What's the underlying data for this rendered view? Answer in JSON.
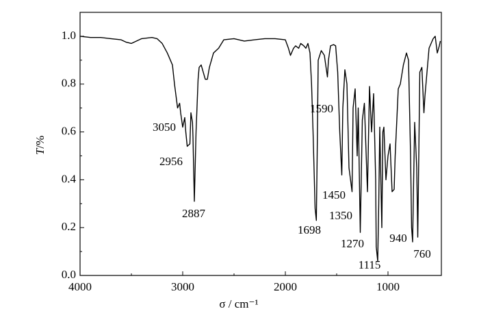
{
  "chart_data": {
    "type": "line",
    "xlabel": "σ / cm⁻¹",
    "ylabel_italic": "T",
    "ylabel_rest": "/%",
    "x": [
      4000,
      3900,
      3800,
      3700,
      3600,
      3550,
      3500,
      3450,
      3400,
      3300,
      3250,
      3200,
      3150,
      3100,
      3080,
      3050,
      3030,
      3020,
      3000,
      2980,
      2970,
      2956,
      2930,
      2920,
      2905,
      2900,
      2887,
      2870,
      2850,
      2840,
      2820,
      2800,
      2780,
      2760,
      2740,
      2700,
      2650,
      2600,
      2500,
      2400,
      2300,
      2200,
      2100,
      2000,
      1970,
      1950,
      1920,
      1900,
      1870,
      1850,
      1820,
      1800,
      1780,
      1760,
      1745,
      1730,
      1710,
      1698,
      1690,
      1680,
      1650,
      1620,
      1600,
      1590,
      1580,
      1560,
      1530,
      1510,
      1490,
      1470,
      1450,
      1440,
      1420,
      1400,
      1380,
      1350,
      1340,
      1320,
      1300,
      1290,
      1270,
      1250,
      1230,
      1200,
      1180,
      1160,
      1140,
      1120,
      1115,
      1100,
      1090,
      1080,
      1060,
      1050,
      1040,
      1020,
      1000,
      980,
      960,
      940,
      930,
      900,
      880,
      850,
      820,
      800,
      780,
      770,
      760,
      750,
      740,
      720,
      710,
      700,
      690,
      670,
      650,
      640,
      600,
      560,
      540,
      520,
      500,
      490
    ],
    "values": [
      1.0,
      0.995,
      0.995,
      0.99,
      0.985,
      0.975,
      0.97,
      0.98,
      0.99,
      0.995,
      0.99,
      0.97,
      0.93,
      0.88,
      0.8,
      0.7,
      0.72,
      0.68,
      0.62,
      0.66,
      0.6,
      0.54,
      0.55,
      0.68,
      0.64,
      0.58,
      0.31,
      0.6,
      0.82,
      0.87,
      0.88,
      0.85,
      0.82,
      0.82,
      0.87,
      0.93,
      0.95,
      0.985,
      0.99,
      0.98,
      0.985,
      0.99,
      0.99,
      0.985,
      0.95,
      0.92,
      0.95,
      0.96,
      0.95,
      0.97,
      0.96,
      0.95,
      0.97,
      0.93,
      0.8,
      0.6,
      0.28,
      0.23,
      0.5,
      0.9,
      0.94,
      0.92,
      0.86,
      0.83,
      0.9,
      0.96,
      0.965,
      0.96,
      0.85,
      0.6,
      0.42,
      0.7,
      0.86,
      0.8,
      0.45,
      0.35,
      0.7,
      0.78,
      0.5,
      0.7,
      0.18,
      0.65,
      0.72,
      0.35,
      0.79,
      0.6,
      0.76,
      0.4,
      0.12,
      0.06,
      0.3,
      0.62,
      0.2,
      0.6,
      0.62,
      0.4,
      0.5,
      0.55,
      0.35,
      0.36,
      0.5,
      0.78,
      0.8,
      0.88,
      0.93,
      0.9,
      0.5,
      0.2,
      0.14,
      0.4,
      0.64,
      0.45,
      0.16,
      0.5,
      0.85,
      0.87,
      0.68,
      0.75,
      0.95,
      0.99,
      1.0,
      0.93,
      0.96,
      0.98
    ],
    "color": "#000000",
    "xlim": [
      4000,
      480
    ],
    "xticks": [
      4000,
      3000,
      2000,
      1000
    ],
    "ylim": [
      0,
      1.1
    ],
    "yticks": [
      {
        "value": 0,
        "label": "0.0"
      },
      {
        "value": 0.2,
        "label": "0.2"
      },
      {
        "value": 0.4,
        "label": "0.4"
      },
      {
        "value": 0.6,
        "label": "0.6"
      },
      {
        "value": 0.8,
        "label": "0.8"
      },
      {
        "value": 1,
        "label": "1.0"
      }
    ],
    "annotations": [
      "3050",
      "2956",
      "2887",
      "1590",
      "1450",
      "1698",
      "1350",
      "1270",
      "940",
      "1115",
      "760"
    ]
  }
}
